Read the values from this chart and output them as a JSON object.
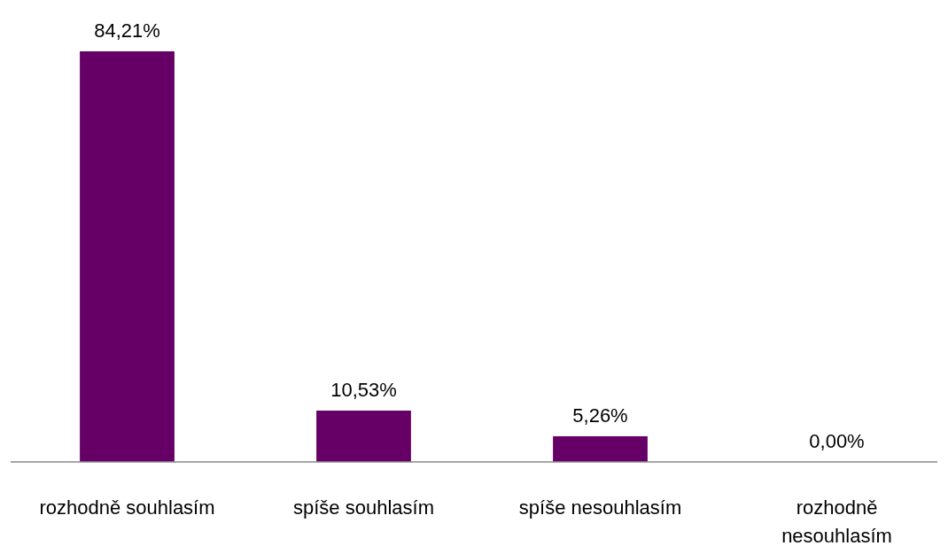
{
  "chart_data": {
    "type": "bar",
    "categories": [
      "rozhodně souhlasím",
      "spíše souhlasím",
      "spíše nesouhlasím",
      "rozhodně nesouhlasím"
    ],
    "values": [
      84.21,
      10.53,
      5.26,
      0
    ],
    "value_labels": [
      "84,21%",
      "10,53%",
      "5,26%",
      "0,00%"
    ],
    "color": "#660066"
  }
}
